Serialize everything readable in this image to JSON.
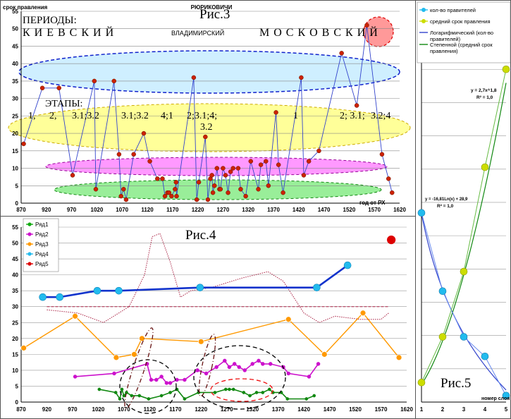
{
  "fig3": {
    "ylabel": "срок правления",
    "title": "РЮРИКОВИЧИ",
    "caption": "Рис.3",
    "periods_label": "ПЕРИОДЫ:",
    "period_kiev": "К И Е В С К И Й",
    "period_vlad": "ВЛАДИМИРСКИЙ",
    "period_mosk": "М О С К О В С К И Й",
    "stages_label": "ЭТАПЫ:",
    "stage_labels": [
      "1,",
      "2,",
      "3.1;3.2",
      "3.1;3.2",
      "4;1",
      "2;3.1;4;",
      "3.2",
      "1",
      "2; 3.1;",
      "3.2;4"
    ],
    "xlabel": "год от РХ",
    "x_ticks": [
      "870",
      "920",
      "970",
      "1020",
      "1070",
      "1120",
      "1170",
      "1220",
      "1270",
      "1320",
      "1370",
      "1420",
      "1470",
      "1520",
      "1570",
      "1620"
    ],
    "y_ticks": [
      "0",
      "5",
      "10",
      "15",
      "20",
      "25",
      "30",
      "35",
      "40",
      "45",
      "50",
      "55"
    ],
    "colors": {
      "line": "#3344cc",
      "point": "#cc2200",
      "ellipse_blue": "#cfefff",
      "ellipse_yellow": "#ffff99",
      "ellipse_pink": "#ff99ff",
      "ellipse_green": "#99ee99",
      "circle_red": "#ff9999"
    }
  },
  "fig4": {
    "caption": "Рис.4",
    "legend": [
      {
        "name": "Ряд1",
        "color": "#11aa11"
      },
      {
        "name": "Ряд2",
        "color": "#cc11cc"
      },
      {
        "name": "Ряд3",
        "color": "#ff9900"
      },
      {
        "name": "Ряд4",
        "color": "#22bbee"
      },
      {
        "name": "Ряд5",
        "color": "#dd0000"
      }
    ],
    "x_ticks": [
      "870",
      "920",
      "970",
      "1020",
      "1070",
      "1120",
      "1170",
      "1220",
      "1270",
      "1320",
      "1370",
      "1420",
      "1470",
      "1520",
      "1570",
      "1620"
    ],
    "y_ticks": [
      "0",
      "5",
      "10",
      "15",
      "20",
      "25",
      "30",
      "35",
      "40",
      "45",
      "50",
      "55"
    ]
  },
  "fig5": {
    "caption": "Рис.5",
    "legend": [
      {
        "name": "кол-во правителей",
        "color": "#22bbee"
      },
      {
        "name": "средний срок правления",
        "color": "#ccdd00"
      },
      {
        "name": "Логарифмический (кол-во правителей)",
        "color": "#3344cc"
      },
      {
        "name": "Степенной (средний срок правления)",
        "color": "#118811"
      }
    ],
    "eq_power": "y = 2,7x^1,8",
    "r2_power": "R² = 1,0",
    "eq_log": "y = -16,81Ln(x) + 28,9",
    "r2_log": "R² = 1,0",
    "xlabel": "номер слоя",
    "x_ticks": [
      "1",
      "2",
      "3",
      "4",
      "5"
    ]
  },
  "chart_data": [
    {
      "type": "scatter",
      "title": "РЮРИКОВИЧИ",
      "ylabel": "срок правления",
      "xlabel": "год от РХ",
      "xlim": [
        870,
        1620
      ],
      "ylim": [
        0,
        55
      ],
      "grid": true,
      "series": [
        {
          "points": [
            [
              875,
              17
            ],
            [
              912,
              33
            ],
            [
              945,
              33
            ],
            [
              972,
              8
            ],
            [
              1015,
              35
            ],
            [
              1018,
              4
            ],
            [
              1054,
              35
            ],
            [
              1064,
              14
            ],
            [
              1068,
              2
            ],
            [
              1073,
              4
            ],
            [
              1078,
              1
            ],
            [
              1093,
              14
            ],
            [
              1113,
              20
            ],
            [
              1125,
              12
            ],
            [
              1140,
              7
            ],
            [
              1150,
              7
            ],
            [
              1155,
              2
            ],
            [
              1160,
              3
            ],
            [
              1163,
              3
            ],
            [
              1168,
              2
            ],
            [
              1175,
              4
            ],
            [
              1177,
              6
            ],
            [
              1178,
              2
            ],
            [
              1212,
              36
            ],
            [
              1218,
              1
            ],
            [
              1222,
              6
            ],
            [
              1235,
              19
            ],
            [
              1240,
              1
            ],
            [
              1245,
              7
            ],
            [
              1248,
              8
            ],
            [
              1250,
              3
            ],
            [
              1253,
              5
            ],
            [
              1258,
              10
            ],
            [
              1263,
              4
            ],
            [
              1265,
              4
            ],
            [
              1270,
              10
            ],
            [
              1275,
              8
            ],
            [
              1280,
              3
            ],
            [
              1285,
              9
            ],
            [
              1290,
              10
            ],
            [
              1300,
              10
            ],
            [
              1305,
              4
            ],
            [
              1315,
              2
            ],
            [
              1325,
              12
            ],
            [
              1340,
              4
            ],
            [
              1345,
              11
            ],
            [
              1355,
              12
            ],
            [
              1360,
              5
            ],
            [
              1375,
              26
            ],
            [
              1380,
              11
            ],
            [
              1389,
              3
            ],
            [
              1425,
              36
            ],
            [
              1430,
              8
            ],
            [
              1440,
              12
            ],
            [
              1460,
              15
            ],
            [
              1505,
              43
            ],
            [
              1535,
              28
            ],
            [
              1555,
              51
            ],
            [
              1585,
              14
            ],
            [
              1598,
              7
            ],
            [
              1605,
              3
            ]
          ]
        }
      ]
    },
    {
      "type": "line",
      "xlim": [
        870,
        1620
      ],
      "ylim": [
        0,
        55
      ],
      "grid": true,
      "legend": "top-left",
      "series": [
        {
          "name": "Ряд1",
          "points": [
            [
              1022,
              4
            ],
            [
              1054,
              3
            ],
            [
              1062,
              1
            ],
            [
              1066,
              4
            ],
            [
              1070,
              2
            ],
            [
              1075,
              3
            ],
            [
              1085,
              2
            ],
            [
              1100,
              2
            ],
            [
              1118,
              1
            ],
            [
              1143,
              2
            ],
            [
              1160,
              3
            ],
            [
              1173,
              4
            ],
            [
              1188,
              1
            ],
            [
              1215,
              3
            ],
            [
              1247,
              3
            ],
            [
              1268,
              4
            ],
            [
              1275,
              4
            ],
            [
              1283,
              4
            ],
            [
              1303,
              3
            ],
            [
              1315,
              2
            ],
            [
              1328,
              3
            ],
            [
              1340,
              3
            ],
            [
              1353,
              4
            ],
            [
              1360,
              3
            ],
            [
              1376,
              3
            ],
            [
              1388,
              1
            ],
            [
              1425,
              1
            ],
            [
              1440,
              2
            ]
          ]
        },
        {
          "name": "Ряд2",
          "points": [
            [
              975,
              8
            ],
            [
              1051,
              9
            ],
            [
              1115,
              12
            ],
            [
              1123,
              7
            ],
            [
              1133,
              7
            ],
            [
              1143,
              8
            ],
            [
              1153,
              6
            ],
            [
              1160,
              6
            ],
            [
              1173,
              7
            ],
            [
              1188,
              7
            ],
            [
              1213,
              10
            ],
            [
              1230,
              9
            ],
            [
              1250,
              11
            ],
            [
              1266,
              13
            ],
            [
              1275,
              11
            ],
            [
              1285,
              12
            ],
            [
              1294,
              11
            ],
            [
              1305,
              10
            ],
            [
              1320,
              12
            ],
            [
              1332,
              13
            ],
            [
              1340,
              12
            ],
            [
              1355,
              12
            ],
            [
              1380,
              11
            ],
            [
              1390,
              9
            ],
            [
              1430,
              8
            ],
            [
              1448,
              12
            ]
          ]
        },
        {
          "name": "Ряд3",
          "points": [
            [
              875,
              17
            ],
            [
              975,
              27
            ],
            [
              1055,
              14
            ],
            [
              1090,
              15
            ],
            [
              1105,
              20
            ],
            [
              1220,
              19
            ],
            [
              1390,
              26
            ],
            [
              1460,
              15
            ],
            [
              1535,
              28
            ],
            [
              1605,
              14
            ]
          ]
        },
        {
          "name": "Ряд4",
          "points": [
            [
              912,
              33
            ],
            [
              945,
              33
            ],
            [
              1018,
              35
            ],
            [
              1060,
              35
            ],
            [
              1218,
              36
            ],
            [
              1445,
              36
            ],
            [
              1505,
              43
            ]
          ]
        },
        {
          "name": "Ряд5",
          "points": [
            [
              1590,
              51
            ]
          ]
        }
      ]
    },
    {
      "type": "scatter",
      "xlabel": "номер слоя",
      "xlim": [
        1,
        5
      ],
      "legend": "top",
      "series": [
        {
          "name": "кол-во правителей",
          "points": [
            [
              1,
              29
            ],
            [
              2,
              17
            ],
            [
              3,
              10
            ],
            [
              4,
              7
            ],
            [
              5,
              1
            ]
          ]
        },
        {
          "name": "средний срок правления",
          "points": [
            [
              1,
              3
            ],
            [
              2,
              10
            ],
            [
              3,
              20
            ],
            [
              4,
              36
            ],
            [
              5,
              51
            ]
          ]
        }
      ]
    }
  ]
}
